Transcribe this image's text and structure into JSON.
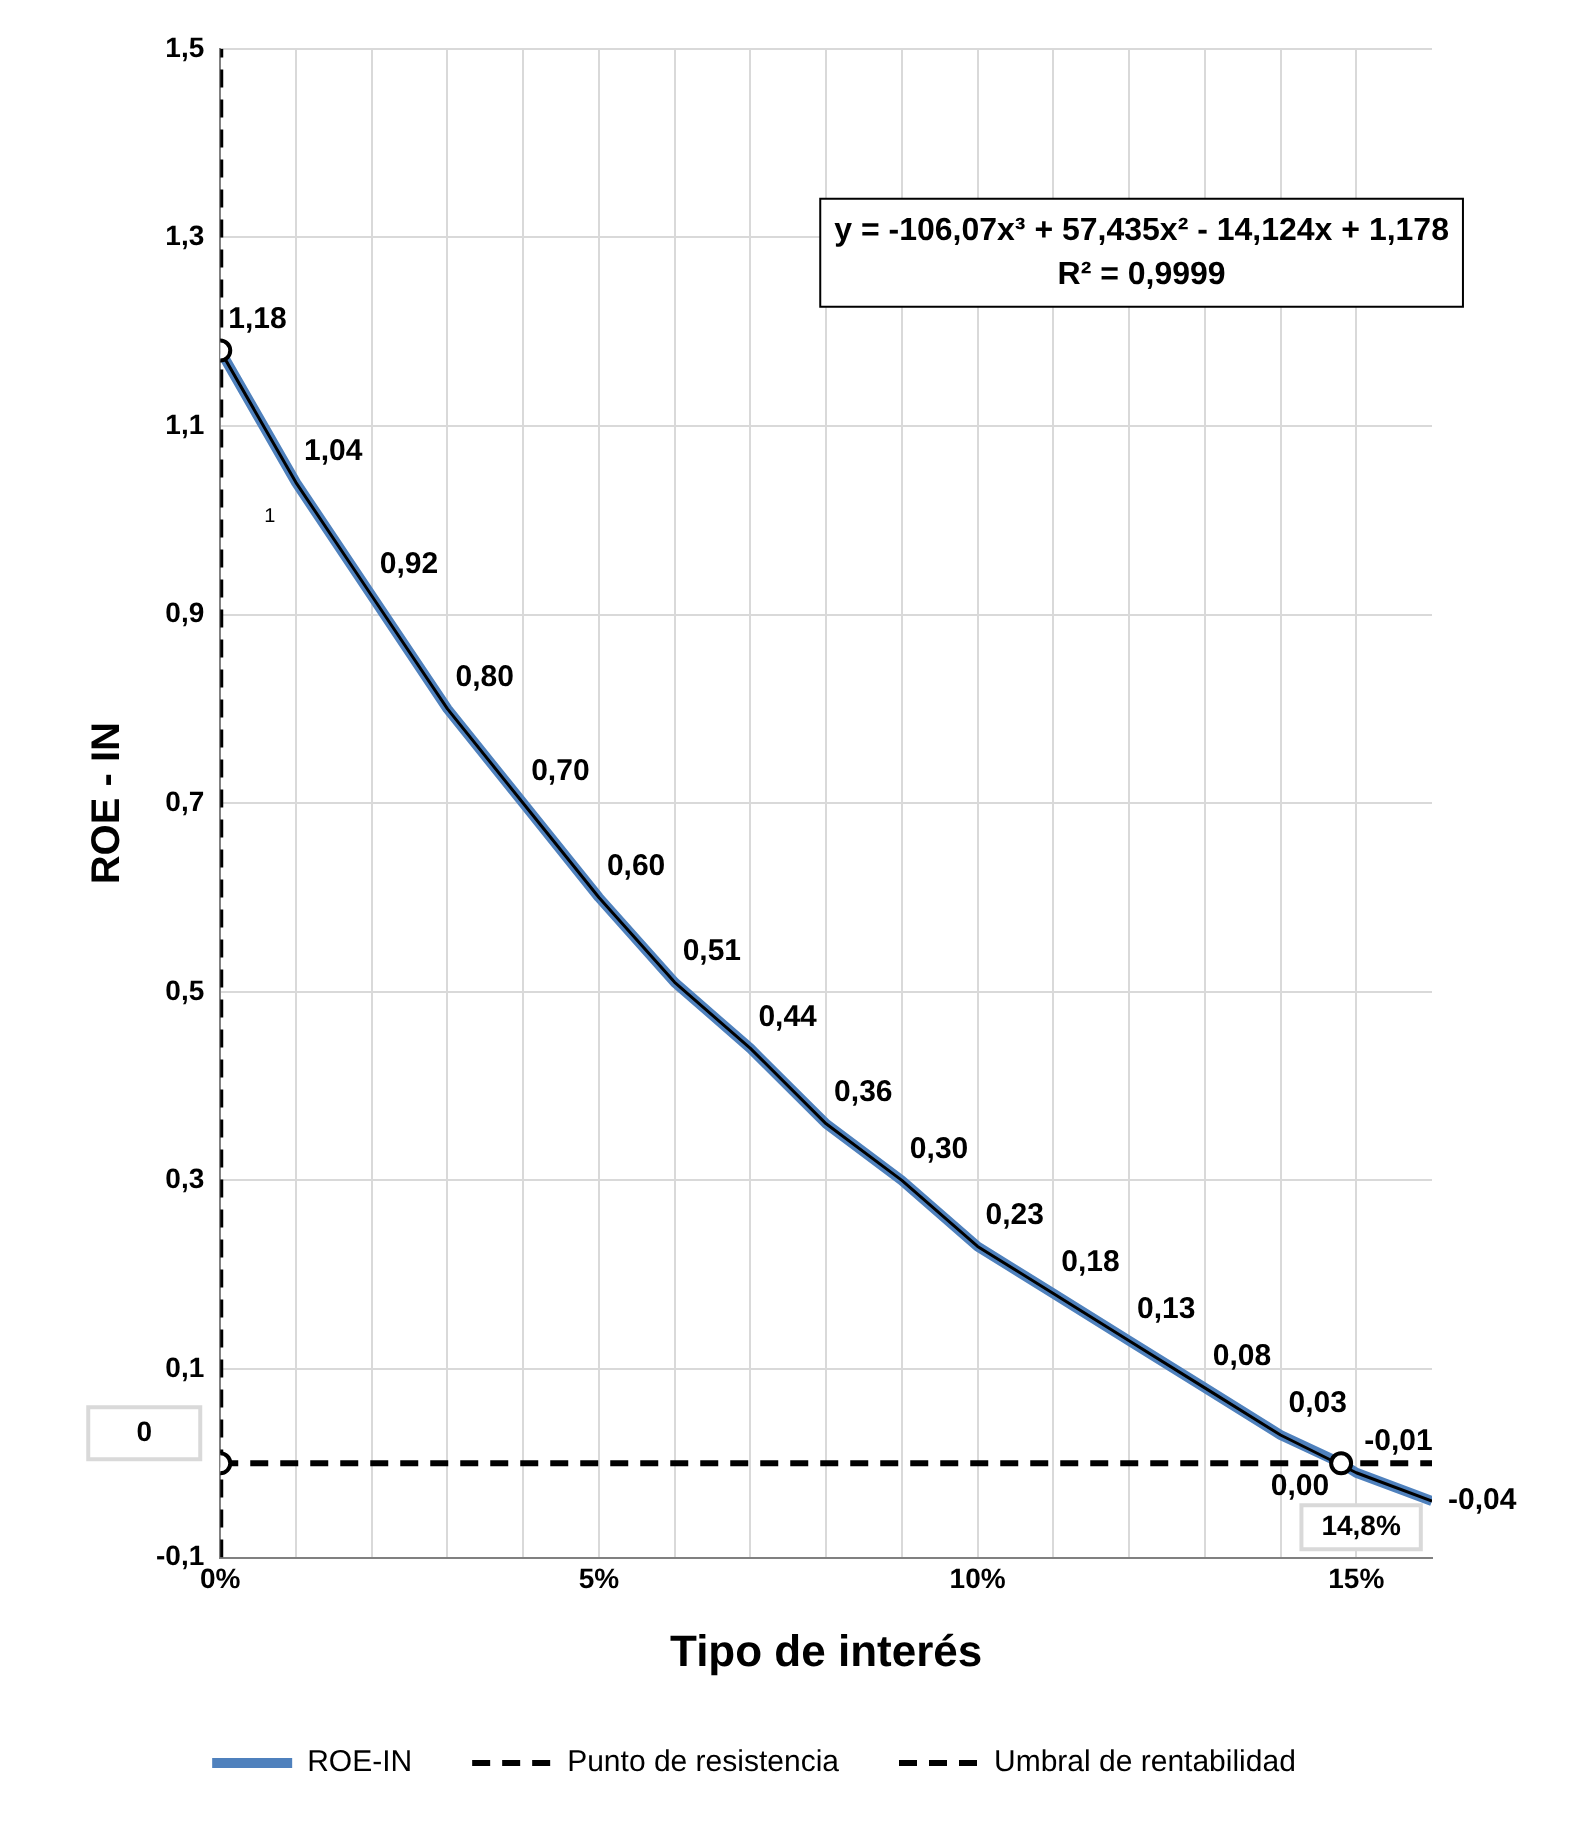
{
  "chart_data": {
    "type": "line",
    "xlabel": "Tipo de interés",
    "ylabel": "ROE - IN",
    "xlim": [
      0,
      16
    ],
    "xticks": [
      {
        "value": 0,
        "label": "0%"
      },
      {
        "value": 1,
        "label": null
      },
      {
        "value": 2,
        "label": null
      },
      {
        "value": 3,
        "label": null
      },
      {
        "value": 4,
        "label": null
      },
      {
        "value": 5,
        "label": "5%"
      },
      {
        "value": 6,
        "label": null
      },
      {
        "value": 7,
        "label": null
      },
      {
        "value": 8,
        "label": null
      },
      {
        "value": 9,
        "label": null
      },
      {
        "value": 10,
        "label": "10%"
      },
      {
        "value": 11,
        "label": null
      },
      {
        "value": 12,
        "label": null
      },
      {
        "value": 13,
        "label": null
      },
      {
        "value": 14,
        "label": null
      },
      {
        "value": 15,
        "label": "15%"
      }
    ],
    "ylim": [
      -0.1,
      1.5
    ],
    "yticks": [
      {
        "value": -0.1,
        "label": "-0,1"
      },
      {
        "value": 0.1,
        "label": "0,1"
      },
      {
        "value": 0.3,
        "label": "0,3"
      },
      {
        "value": 0.5,
        "label": "0,5"
      },
      {
        "value": 0.7,
        "label": "0,7"
      },
      {
        "value": 0.9,
        "label": "0,9"
      },
      {
        "value": 1.1,
        "label": "1,1"
      },
      {
        "value": 1.3,
        "label": "1,3"
      },
      {
        "value": 1.5,
        "label": "1,5"
      }
    ],
    "grid": true,
    "legend": "bottom",
    "series": [
      {
        "name": "ROE-IN",
        "color": "#4f81bd",
        "marker": "none",
        "line_style": "solid",
        "x": [
          0,
          1,
          2,
          3,
          4,
          5,
          6,
          7,
          8,
          9,
          10,
          11,
          12,
          13,
          14,
          14.8,
          15,
          16
        ],
        "values": [
          1.18,
          1.04,
          0.92,
          0.8,
          0.7,
          0.6,
          0.51,
          0.44,
          0.36,
          0.3,
          0.23,
          0.18,
          0.13,
          0.08,
          0.03,
          0.0,
          -0.01,
          -0.04
        ],
        "value_labels": [
          "1,18",
          "1,04",
          "0,92",
          "0,80",
          "0,70",
          "0,60",
          "0,51",
          "0,44",
          "0,36",
          "0,30",
          "0,23",
          "0,18",
          "0,13",
          "0,08",
          "0,03",
          "0,00",
          "-0,01",
          "-0,04"
        ]
      },
      {
        "color": "#000000",
        "marker": "none",
        "line_style": "solid",
        "x": [
          0,
          1,
          2,
          3,
          4,
          5,
          6,
          7,
          8,
          9,
          10,
          11,
          12,
          13,
          14,
          15,
          16
        ],
        "values": [
          1.18,
          1.04,
          0.92,
          0.8,
          0.7,
          0.6,
          0.51,
          0.44,
          0.36,
          0.3,
          0.23,
          0.18,
          0.13,
          0.08,
          0.03,
          -0.01,
          -0.04
        ]
      },
      {
        "name": "Punto de resistencia",
        "color": "#000000",
        "marker": "none",
        "line_style": "dashed",
        "x": [
          0,
          16
        ],
        "values": [
          0,
          0
        ]
      },
      {
        "name": "Umbral de rentabilidad",
        "color": "#000000",
        "marker": "none",
        "line_style": "dashed",
        "x": [
          0,
          0
        ],
        "values": [
          -0.1,
          1.5
        ]
      },
      {
        "type": "scatter",
        "color": "#000000",
        "marker": "circle",
        "x": [
          0,
          0,
          14.8
        ],
        "values": [
          1.18,
          0,
          0
        ]
      }
    ],
    "annotations": [
      "y = -106,07x³ + 57,435x² - 14,124x + 1,178",
      "R² = 0,9999",
      {
        "text": "0",
        "x": 0,
        "y": 0
      },
      {
        "text": "14,8%",
        "x": 14.8,
        "y": 0
      },
      "1"
    ]
  }
}
